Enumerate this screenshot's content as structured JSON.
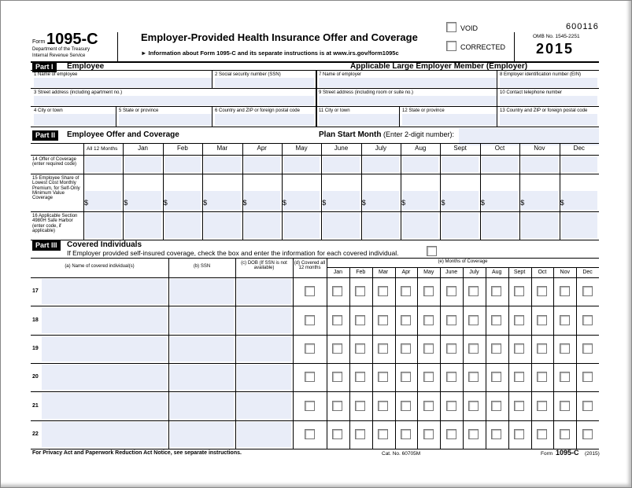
{
  "header": {
    "form_label": "Form",
    "form_number": "1095-C",
    "department": [
      "Department of the Treasury",
      "Internal Revenue Service"
    ],
    "title": "Employer-Provided Health Insurance Offer and Coverage",
    "info": "► Information about Form 1095-C and its separate instructions is at www.irs.gov/form1095c",
    "void": "VOID",
    "corrected": "CORRECTED",
    "code": "600116",
    "omb": "OMB No. 1545-2251",
    "year": "2015"
  },
  "part1": {
    "label": "Part I",
    "title": "Employee",
    "employer_title": "Applicable Large Employer Member (Employer)",
    "fields": [
      "1 Name of employee",
      "2 Social security number (SSN)",
      "3 Street address (including apartment no.)",
      "4 City or town",
      "5 State or province",
      "6 Country and ZIP or foreign postal code",
      "7 Name of employer",
      "8 Employer identification number (EIN)",
      "9 Street address (including room or suite no.)",
      "10 Contact telephone number",
      "11 City or town",
      "12 State or province",
      "13 Country and ZIP or foreign postal code"
    ]
  },
  "part2": {
    "label": "Part II",
    "title": "Employee Offer and Coverage",
    "plan_start": "Plan Start Month",
    "plan_start_note": "(Enter 2-digit number):",
    "all_months": "All 12 Months",
    "months": [
      "Jan",
      "Feb",
      "Mar",
      "Apr",
      "May",
      "June",
      "July",
      "Aug",
      "Sept",
      "Oct",
      "Nov",
      "Dec"
    ],
    "lines": [
      "14 Offer of Coverage (enter required code)",
      "15 Employee Share of Lowest Cost Monthly Premium, for Self-Only Minimum Value Coverage",
      "16 Applicable Section 4980H Safe Harbor (enter code, if applicable)"
    ],
    "currency": "$"
  },
  "part3": {
    "label": "Part III",
    "title": "Covered Individuals",
    "instruction": "If Employer provided self-insured coverage, check the box and enter the information for each covered individual.",
    "columns": [
      "(a) Name of covered individual(s)",
      "(b) SSN",
      "(c) DOB (If SSN is not available)",
      "(d) Covered all 12 months"
    ],
    "months_title": "(e) Months of Coverage",
    "months": [
      "Jan",
      "Feb",
      "Mar",
      "Apr",
      "May",
      "June",
      "July",
      "Aug",
      "Sept",
      "Oct",
      "Nov",
      "Dec"
    ],
    "rows": [
      "17",
      "18",
      "19",
      "20",
      "21",
      "22"
    ]
  },
  "footer": {
    "notice": "For Privacy Act and Paperwork Reduction Act Notice, see separate instructions.",
    "cat": "Cat. No. 60705M",
    "form_label": "Form",
    "form_number": "1095-C",
    "year": "(2015)"
  }
}
